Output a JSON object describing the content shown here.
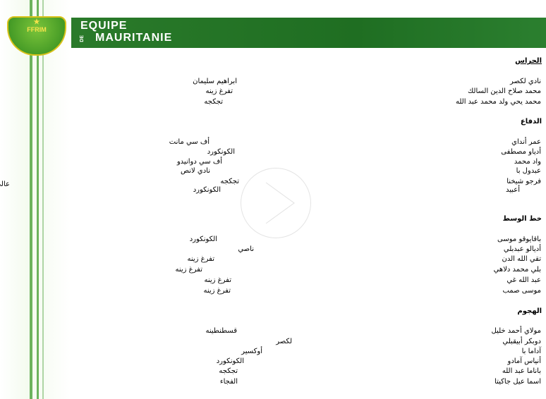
{
  "header": {
    "logo_text": "FFRIM",
    "line1": "EQUIPE",
    "de": "DE",
    "line2": "MAURITANIE"
  },
  "sections": [
    {
      "title": "الحراس",
      "underline": true,
      "players": [
        {
          "name": "نادي لكصر",
          "club": "ابراهيم سليمان"
        },
        {
          "name": "محمد صلاح الدين السالك",
          "club": "تفرغ زينه"
        },
        {
          "name": "محمد يحي ولد محمد عبد الله",
          "club": "تجكجه"
        }
      ]
    },
    {
      "title": "الدفاع",
      "players": [
        {
          "name": "عمر أنداي",
          "club": "أف سي مانت"
        },
        {
          "name": "أدياو مصطفى",
          "club": "الكونكورد"
        },
        {
          "name": "واد محمد",
          "club": "أف سي دوانيدو"
        },
        {
          "name": "عبدول با",
          "club": "نادي لانص"
        },
        {
          "name": "فرجو شيخنا",
          "club": "تجكجه"
        },
        {
          "name": "أعبيد",
          "club": "الكونكورد"
        }
      ]
    },
    {
      "title": "خط الوسط",
      "players": [
        {
          "name": "باقايوقو موسى",
          "club": "الكونكورد"
        },
        {
          "name": "أديالو عبدبلي",
          "club": "ناصي"
        },
        {
          "name": "تقي الله الدن",
          "club": "تفرغ زينه"
        },
        {
          "name": "بلي محمد دلاهي",
          "club": "تفرغ زينه"
        },
        {
          "name": "عبد الله غي",
          "club": "تفرغ زينه"
        },
        {
          "name": "موسى صمب",
          "club": "تفرغ زينه"
        }
      ]
    },
    {
      "title": "الهجوم",
      "players": [
        {
          "name": "مولاي أحمد خليل",
          "club": "قسطنطينه"
        },
        {
          "name": "دوبكر أبيقبلي",
          "club": "لكصر"
        },
        {
          "name": "آداما با",
          "club": "أوكسير"
        },
        {
          "name": "أنياس آمادو",
          "club": "الكونكورد"
        },
        {
          "name": "باناما عبد الله",
          "club": "تجكجه"
        },
        {
          "name": "اسما عيل جاكيتا",
          "club": "الفجاء"
        }
      ]
    }
  ],
  "overflow_text": "عالي",
  "colors": {
    "banner": "#1f6e22",
    "accent": "#3e9b2c"
  },
  "icons": {
    "play": "play-icon"
  }
}
